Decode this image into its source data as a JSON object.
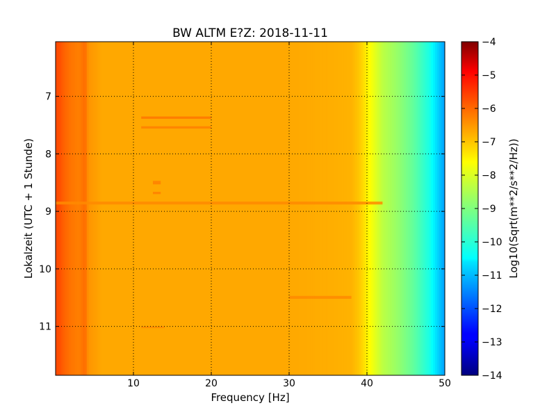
{
  "chart_data": {
    "type": "heatmap",
    "title": "BW ALTM E?Z: 2018-11-11",
    "xlabel": "Frequency [Hz]",
    "ylabel": "Lokalzeit (UTC + 1 Stunde)",
    "xlim": [
      0,
      50
    ],
    "ylim": [
      11.85,
      6.05
    ],
    "y_inverted": true,
    "x_ticks": [
      10,
      20,
      30,
      40,
      50
    ],
    "y_ticks": [
      7,
      8,
      9,
      10,
      11
    ],
    "grid": true,
    "colormap": "jet",
    "colorbar": {
      "label": "Log10(Sqrt(m**2/s**2/Hz))",
      "range": [
        -14,
        -4
      ],
      "ticks": [
        -4,
        -5,
        -6,
        -7,
        -8,
        -9,
        -10,
        -11,
        -12,
        -13,
        -14
      ]
    },
    "spectrum_profile": {
      "frequency_hz": [
        0,
        0.5,
        1,
        2,
        3,
        3.8,
        4.2,
        6,
        10,
        20,
        30,
        35,
        38,
        39,
        40,
        41,
        42,
        44,
        46,
        48,
        49,
        50
      ],
      "log10_amplitude": [
        -6.0,
        -6.0,
        -6.2,
        -6.4,
        -6.5,
        -6.3,
        -6.7,
        -6.9,
        -6.9,
        -6.9,
        -6.9,
        -6.95,
        -7.0,
        -7.2,
        -7.6,
        -8.0,
        -8.4,
        -8.8,
        -9.3,
        -10.0,
        -10.6,
        -11.2
      ]
    },
    "annotations": [
      {
        "time_from": 7.35,
        "time_to": 7.39,
        "freq_from": 11,
        "freq_to": 20,
        "log10_amplitude": -6.4
      },
      {
        "time_from": 7.52,
        "time_to": 7.56,
        "freq_from": 11,
        "freq_to": 20,
        "log10_amplitude": -6.5
      },
      {
        "time_from": 8.47,
        "time_to": 8.53,
        "freq_from": 12.5,
        "freq_to": 13.5,
        "log10_amplitude": -6.5
      },
      {
        "time_from": 8.66,
        "time_to": 8.7,
        "freq_from": 12.5,
        "freq_to": 13.5,
        "log10_amplitude": -6.5
      },
      {
        "time_from": 8.83,
        "time_to": 8.88,
        "freq_from": 0,
        "freq_to": 42,
        "log10_amplitude": -6.6
      },
      {
        "time_from": 10.47,
        "time_to": 10.52,
        "freq_from": 30,
        "freq_to": 38,
        "log10_amplitude": -6.6
      },
      {
        "time_from": 11.0,
        "time_to": 11.03,
        "freq_from": 11,
        "freq_to": 14,
        "log10_amplitude": -6.6
      }
    ]
  }
}
